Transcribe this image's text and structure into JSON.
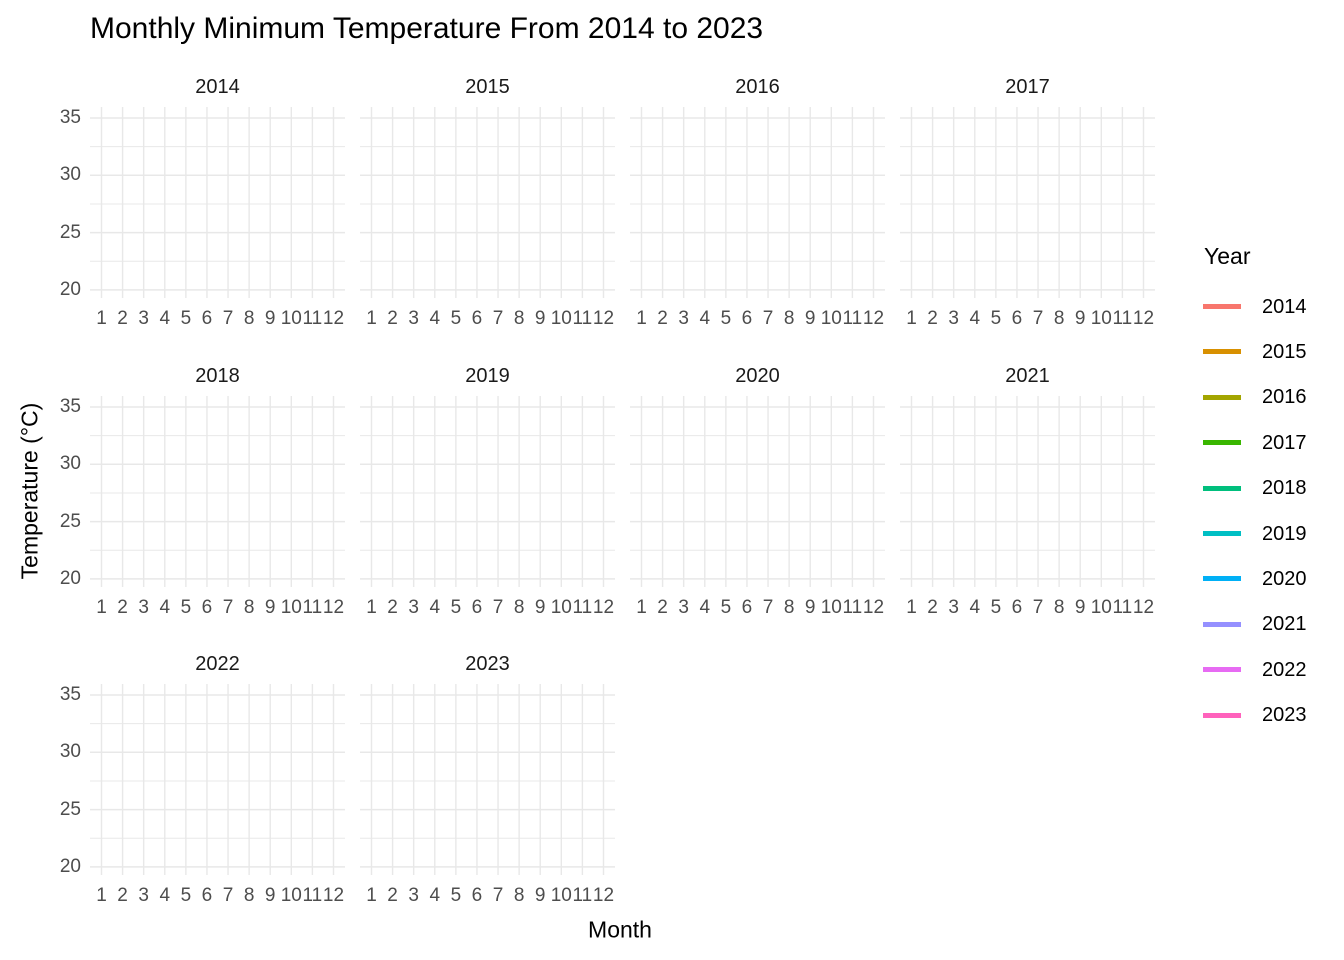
{
  "title": "Monthly Minimum Temperature From 2014 to 2023",
  "x_axis_title": "Month",
  "y_axis_title": "Temperature (°C)",
  "legend": {
    "title": "Year",
    "entries": [
      {
        "label": "2014",
        "color": "#F8766D"
      },
      {
        "label": "2015",
        "color": "#D89000"
      },
      {
        "label": "2016",
        "color": "#A3A500"
      },
      {
        "label": "2017",
        "color": "#39B600"
      },
      {
        "label": "2018",
        "color": "#00BF7D"
      },
      {
        "label": "2019",
        "color": "#00BFC4"
      },
      {
        "label": "2020",
        "color": "#00B0F6"
      },
      {
        "label": "2021",
        "color": "#9590FF"
      },
      {
        "label": "2022",
        "color": "#E76BF3"
      },
      {
        "label": "2023",
        "color": "#FF62BC"
      }
    ]
  },
  "chart_data": {
    "type": "line",
    "title": "Monthly Minimum Temperature From 2014 to 2023",
    "xlabel": "Month",
    "ylabel": "Temperature (°C)",
    "facets": [
      "2014",
      "2015",
      "2016",
      "2017",
      "2018",
      "2019",
      "2020",
      "2021",
      "2022",
      "2023"
    ],
    "facet_columns": 4,
    "x_ticks": [
      "1",
      "2",
      "3",
      "4",
      "5",
      "6",
      "7",
      "8",
      "9",
      "10",
      "11",
      "12"
    ],
    "y_ticks": [
      "35",
      "30",
      "25",
      "20"
    ],
    "xlim": [
      0.45,
      12.55
    ],
    "ylim": [
      19,
      36
    ],
    "grid": "light gray major gridlines at each month (x) and at 20/25/30/35 with minor lines at 22.5/27.5/32.5 (y); no axis tick marks; white panel background",
    "legend_position": "right",
    "series": [],
    "note": "All ten facet panels are empty gridded panels — no data lines are plotted; only the legend shows the year colors."
  },
  "colors": {
    "background": "#FFFFFF",
    "gridline": "#E8E8E8",
    "axis_text": "#4D4D4D",
    "strip_text": "#1A1A1A",
    "title_text": "#000000"
  }
}
